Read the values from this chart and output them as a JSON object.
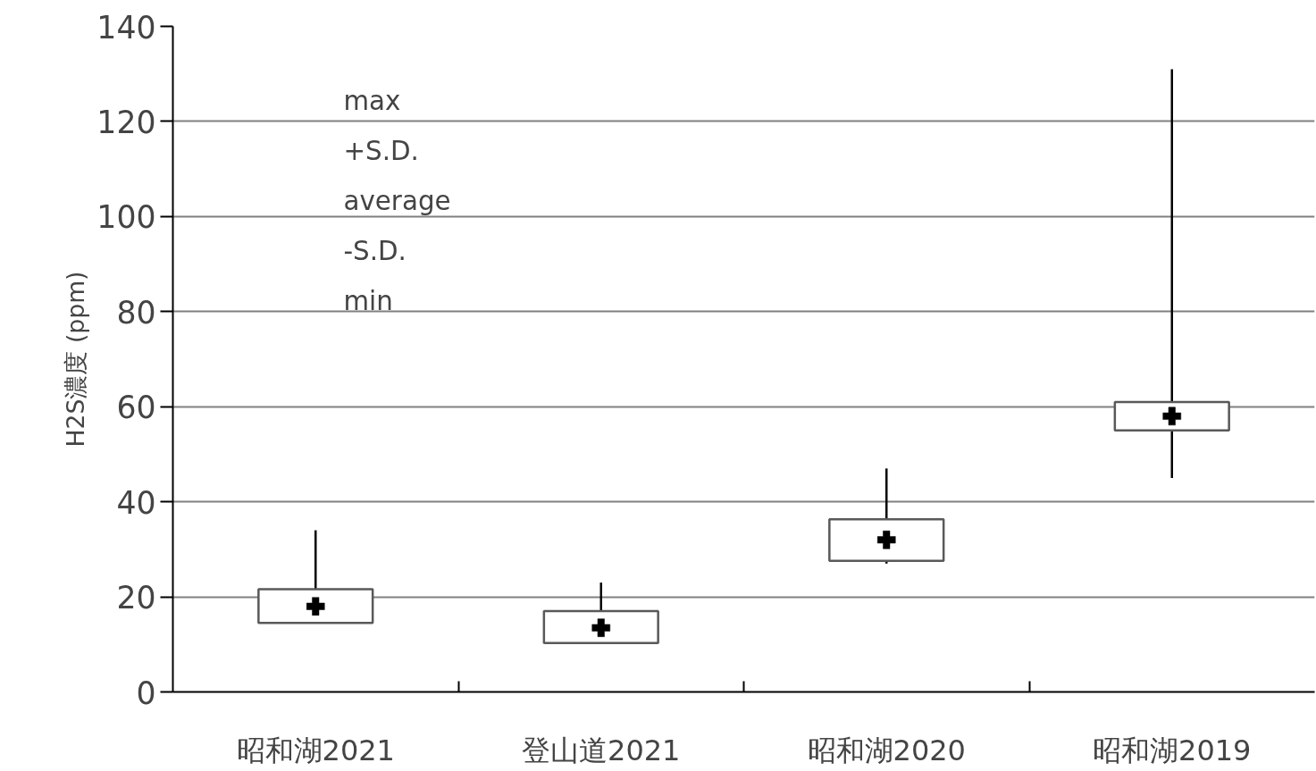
{
  "chart_data": {
    "type": "box",
    "ylabel": "H2S濃度 (ppm)",
    "categories": [
      "昭和湖2021",
      "登山道2021",
      "昭和湖2020",
      "昭和湖2019"
    ],
    "boxes": [
      {
        "low": 14.5,
        "q1": 14.5,
        "q3": 21.6,
        "high": 34,
        "mean": 18
      },
      {
        "low": 10.3,
        "q1": 10.3,
        "q3": 17,
        "high": 23,
        "mean": 13.5
      },
      {
        "low": 27,
        "q1": 27.6,
        "q3": 36.3,
        "high": 47,
        "mean": 32
      },
      {
        "low": 45,
        "q1": 55,
        "q3": 61,
        "high": 131,
        "mean": 58
      }
    ],
    "ylim": [
      0,
      140
    ],
    "yticks": [
      0,
      20,
      40,
      60,
      80,
      100,
      120,
      140
    ],
    "grid": "y",
    "annotations": [
      "max",
      "+S.D.",
      "average",
      "-S.D.",
      "min"
    ]
  }
}
